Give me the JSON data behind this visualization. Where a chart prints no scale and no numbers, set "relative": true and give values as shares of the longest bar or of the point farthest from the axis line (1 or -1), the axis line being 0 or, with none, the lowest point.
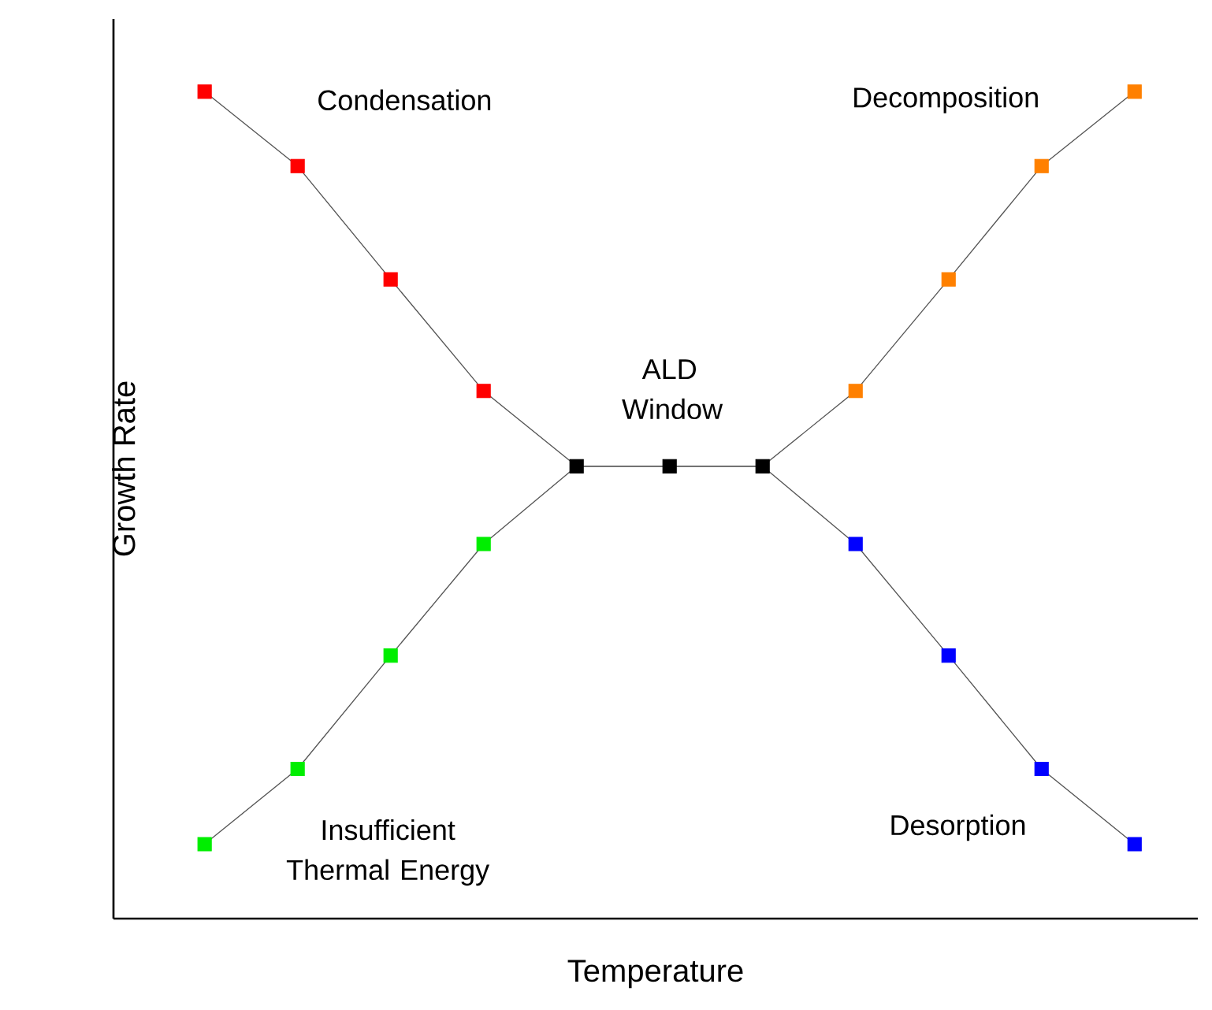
{
  "chart_data": {
    "type": "line",
    "relative": true,
    "xlabel": "Temperature",
    "ylabel": "Growth Rate",
    "categories": [
      null,
      null,
      null,
      null,
      null,
      null,
      null,
      null,
      null,
      null,
      null
    ],
    "marker": "square",
    "line_style": "solid",
    "series": [
      {
        "color": "#555555",
        "values": [
          1,
          0.91,
          0.773,
          0.638,
          0.547,
          0.547,
          0.547,
          0.638,
          0.773,
          0.91,
          1
        ],
        "colors": [
          "#ff0000",
          "#ff0000",
          "#ff0000",
          "#ff0000",
          "#000000",
          "#000000",
          "#000000",
          "#ff8000",
          "#ff8000",
          "#ff8000",
          "#ff8000"
        ]
      },
      {
        "color": "#555555",
        "values": [
          0.09,
          0.181,
          0.318,
          0.453,
          0.547,
          0.547,
          0.547,
          0.453,
          0.318,
          0.181,
          0.09
        ],
        "colors": [
          "#00ee00",
          "#00ee00",
          "#00ee00",
          "#00ee00",
          null,
          null,
          null,
          "#0000ff",
          "#0000ff",
          "#0000ff",
          "#0000ff"
        ]
      }
    ],
    "annotations": [
      "Condensation",
      "Decomposition",
      "ALD Window",
      "Insufficient Thermal Energy",
      "Desorption"
    ]
  }
}
